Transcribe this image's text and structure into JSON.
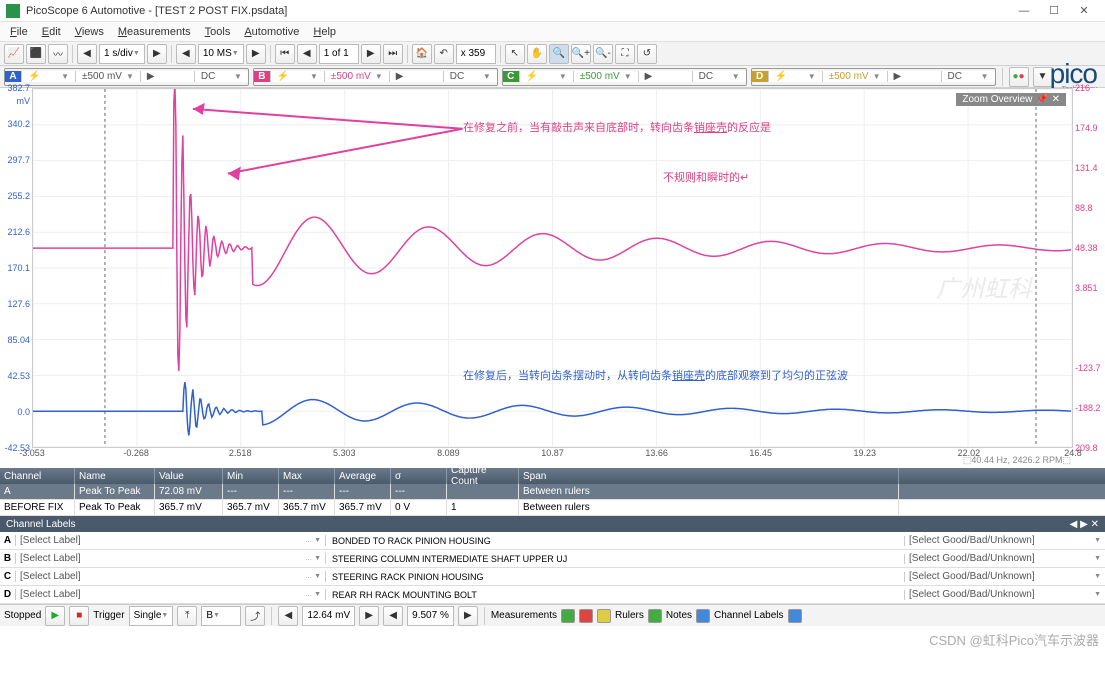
{
  "window": {
    "title": "PicoScope 6 Automotive - [TEST 2  POST FIX.psdata]",
    "min": "—",
    "max": "☐",
    "close": "✕"
  },
  "menu": [
    "File",
    "Edit",
    "Views",
    "Measurements",
    "Tools",
    "Automotive",
    "Help"
  ],
  "toolbar1": {
    "time_div": "1 s/div",
    "samples": "10 MS",
    "page": "1 of 1",
    "x_marker": "x 359"
  },
  "channels": {
    "A": {
      "range": "±500 mV",
      "coupling": "DC",
      "color": "#3060d0"
    },
    "B": {
      "range": "±500 mV",
      "coupling": "DC",
      "color": "#e04080"
    },
    "C": {
      "range": "±500 mV",
      "coupling": "DC",
      "color": "#3a9a3a"
    },
    "D": {
      "range": "±500 mV",
      "coupling": "DC",
      "color": "#c8a030"
    }
  },
  "logo": {
    "text": "pico",
    "sub": "Technology"
  },
  "chart": {
    "y_left_ticks": [
      "382.7",
      "340.2",
      "297.7",
      "255.2",
      "212.6",
      "170.1",
      "127.6",
      "85.04",
      "42.53",
      "0.0",
      "-42.53"
    ],
    "y_left_unit": "mV",
    "y_right_ticks": [
      "216",
      "174.9",
      "131.4",
      "88.8",
      "48.38",
      "3.851",
      "",
      "-123.7",
      "-188.2",
      "209.8"
    ],
    "y_right_unit": "mV",
    "x_ticks": [
      "-3.053",
      "-0.268",
      "2.518",
      "5.303",
      "8.089",
      "10.87",
      "13.66",
      "16.45",
      "19.23",
      "22.02",
      "24.8"
    ],
    "x_unit": "ms",
    "ruler1_x": 0.069,
    "ruler2_x": 0.965,
    "zoom_label": "Zoom Overview",
    "freq": "40.44 Hz, 2426.2 RPM",
    "annotation_pink1": "在修复之前，当有敲击声来自底部时，转向齿条",
    "annotation_pink1_u": "销座壳",
    "annotation_pink1b": "的反应是",
    "annotation_pink2": "不规则和瞬时的↵",
    "annotation_blue": "在修复后，当转向齿条摆动时，从转向齿条",
    "annotation_blue_u": "销座壳",
    "annotation_blue_b": "的底部观察到了均匀的正弦波",
    "watermark": "广州虹科"
  },
  "measurements": {
    "cols": [
      "Channel",
      "Name",
      "Value",
      "Min",
      "Max",
      "Average",
      "σ",
      "Capture Count",
      "Span"
    ],
    "widths": [
      75,
      80,
      68,
      56,
      56,
      56,
      56,
      72,
      380
    ],
    "rows": [
      [
        "A",
        "Peak To Peak",
        "72.08 mV",
        "---",
        "---",
        "---",
        "---",
        "",
        "Between rulers"
      ],
      [
        "BEFORE FIX",
        "Peak To Peak",
        "365.7 mV",
        "365.7 mV",
        "365.7 mV",
        "365.7 mV",
        "0 V",
        "1",
        "Between rulers"
      ]
    ]
  },
  "channel_labels": {
    "title": "Channel Labels",
    "select": "[Select Label]",
    "good": "[Select Good/Bad/Unknown]",
    "rows": [
      {
        "ch": "A",
        "desc": "BONDED TO RACK PINION HOUSING"
      },
      {
        "ch": "B",
        "desc": "STEERING COLUMN INTERMEDIATE SHAFT UPPER UJ"
      },
      {
        "ch": "C",
        "desc": "STEERING RACK PINION HOUSING"
      },
      {
        "ch": "D",
        "desc": "REAR RH RACK MOUNTING BOLT"
      }
    ]
  },
  "status": {
    "stopped": "Stopped",
    "trigger": "Trigger",
    "single": "Single",
    "val1": "B",
    "val2": "12.64 mV",
    "val3": "9.507 %",
    "meas": "Measurements",
    "rulers": "Rulers",
    "notes": "Notes",
    "clabels": "Channel Labels"
  },
  "csdn": "CSDN @虹科Pico汽车示波器"
}
